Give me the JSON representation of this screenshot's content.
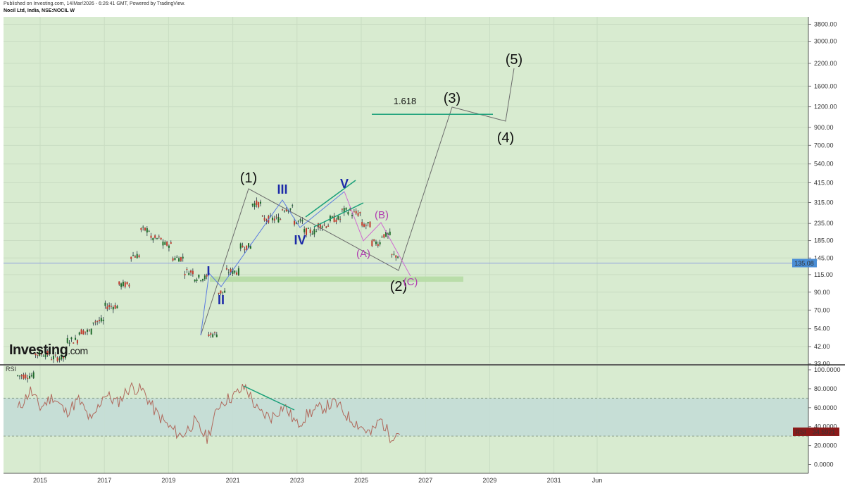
{
  "header": {
    "published": "Published on Investing.com, 14/Mar/2026 - 6:26:41 GMT, Powered by TradingView.",
    "symbol": "Nocil Ltd, India, NSE:NOCIL W"
  },
  "logo": {
    "main": "Investing",
    "suffix": ".com"
  },
  "colors": {
    "price_panel_bg": "#d8ebd0",
    "rsi_band": "#c4ddd6",
    "rsi_line": "#b0695c",
    "impulse_line": "#6b6b6b",
    "sub_wave_line": "#5b7be0",
    "abc_line": "#d06ad0",
    "trendline": "#1aa07a",
    "support_zone": "#b7dca7",
    "price_line": "#8ea0e0",
    "price_badge": "#4a8ed6",
    "rsi_badge": "#8b1a1a"
  },
  "chart_data": [
    {
      "type": "line",
      "panel": "price",
      "scale": "log",
      "y_ticks": [
        "3800.00",
        "3000.00",
        "2200.00",
        "1600.00",
        "1200.00",
        "900.00",
        "700.00",
        "540.00",
        "415.00",
        "315.00",
        "235.00",
        "185.00",
        "145.00",
        "115.00",
        "90.00",
        "70.00",
        "54.00",
        "42.00",
        "33.00"
      ],
      "x_ticks": [
        "2015",
        "2017",
        "2019",
        "2021",
        "2023",
        "2025",
        "2027",
        "2029",
        "2031",
        "Jun"
      ],
      "last_price": "135.08",
      "price_series_approx": [
        {
          "x": 2014.3,
          "y": 28
        },
        {
          "x": 2014.8,
          "y": 38
        },
        {
          "x": 2015.3,
          "y": 36
        },
        {
          "x": 2015.8,
          "y": 46
        },
        {
          "x": 2016.2,
          "y": 52
        },
        {
          "x": 2016.6,
          "y": 60
        },
        {
          "x": 2017.0,
          "y": 74
        },
        {
          "x": 2017.4,
          "y": 100
        },
        {
          "x": 2017.8,
          "y": 150
        },
        {
          "x": 2018.1,
          "y": 215
        },
        {
          "x": 2018.4,
          "y": 190
        },
        {
          "x": 2018.8,
          "y": 175
        },
        {
          "x": 2019.1,
          "y": 145
        },
        {
          "x": 2019.5,
          "y": 120
        },
        {
          "x": 2019.8,
          "y": 110
        },
        {
          "x": 2020.2,
          "y": 50
        },
        {
          "x": 2020.5,
          "y": 90
        },
        {
          "x": 2020.8,
          "y": 120
        },
        {
          "x": 2021.2,
          "y": 170
        },
        {
          "x": 2021.6,
          "y": 310
        },
        {
          "x": 2021.9,
          "y": 250
        },
        {
          "x": 2022.2,
          "y": 250
        },
        {
          "x": 2022.5,
          "y": 290
        },
        {
          "x": 2022.9,
          "y": 240
        },
        {
          "x": 2023.2,
          "y": 210
        },
        {
          "x": 2023.6,
          "y": 230
        },
        {
          "x": 2024.0,
          "y": 250
        },
        {
          "x": 2024.4,
          "y": 280
        },
        {
          "x": 2024.7,
          "y": 270
        },
        {
          "x": 2025.0,
          "y": 230
        },
        {
          "x": 2025.3,
          "y": 180
        },
        {
          "x": 2025.6,
          "y": 200
        },
        {
          "x": 2025.9,
          "y": 150
        },
        {
          "x": 2026.2,
          "y": 135
        }
      ],
      "elliott_waves": {
        "primary": [
          "(1)",
          "(2)",
          "(3)",
          "(4)",
          "(5)"
        ],
        "intermediate": [
          "I",
          "II",
          "III",
          "IV",
          "V"
        ],
        "corrective": [
          "(A)",
          "(B)",
          "(C)"
        ],
        "fib_label": "1.618"
      }
    },
    {
      "type": "line",
      "panel": "rsi",
      "label": "RSI",
      "y_ticks": [
        "100.0000",
        "80.0000",
        "60.0000",
        "40.0000",
        "20.0000",
        "0.0000"
      ],
      "overbought": 70,
      "oversold": 30,
      "last_value": "34.5921",
      "rsi_series_approx": [
        {
          "x": 2014.3,
          "y": 58
        },
        {
          "x": 2014.7,
          "y": 78
        },
        {
          "x": 2015.0,
          "y": 60
        },
        {
          "x": 2015.4,
          "y": 72
        },
        {
          "x": 2015.8,
          "y": 55
        },
        {
          "x": 2016.2,
          "y": 68
        },
        {
          "x": 2016.6,
          "y": 45
        },
        {
          "x": 2017.0,
          "y": 75
        },
        {
          "x": 2017.4,
          "y": 65
        },
        {
          "x": 2017.8,
          "y": 82
        },
        {
          "x": 2018.2,
          "y": 78
        },
        {
          "x": 2018.6,
          "y": 55
        },
        {
          "x": 2019.0,
          "y": 40
        },
        {
          "x": 2019.4,
          "y": 30
        },
        {
          "x": 2019.8,
          "y": 45
        },
        {
          "x": 2020.2,
          "y": 28
        },
        {
          "x": 2020.6,
          "y": 65
        },
        {
          "x": 2021.0,
          "y": 72
        },
        {
          "x": 2021.4,
          "y": 82
        },
        {
          "x": 2021.8,
          "y": 55
        },
        {
          "x": 2022.2,
          "y": 50
        },
        {
          "x": 2022.6,
          "y": 62
        },
        {
          "x": 2023.0,
          "y": 42
        },
        {
          "x": 2023.4,
          "y": 55
        },
        {
          "x": 2023.8,
          "y": 60
        },
        {
          "x": 2024.2,
          "y": 65
        },
        {
          "x": 2024.6,
          "y": 50
        },
        {
          "x": 2025.0,
          "y": 40
        },
        {
          "x": 2025.3,
          "y": 32
        },
        {
          "x": 2025.6,
          "y": 48
        },
        {
          "x": 2025.9,
          "y": 30
        },
        {
          "x": 2026.2,
          "y": 35
        }
      ]
    }
  ]
}
